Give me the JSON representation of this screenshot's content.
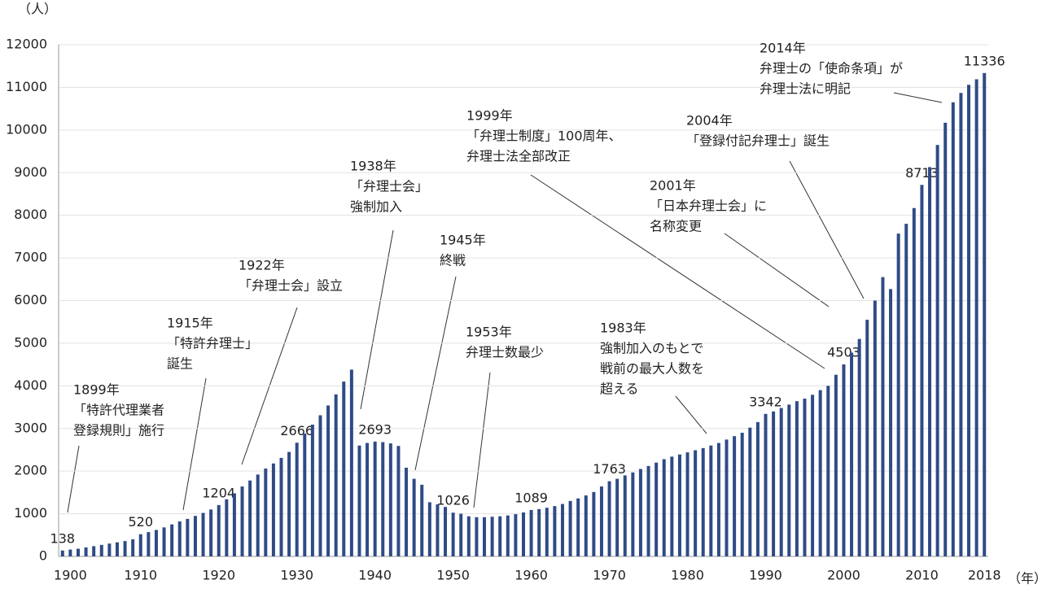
{
  "chart_data": {
    "type": "bar",
    "y_unit": "（人）",
    "x_unit": "（年）",
    "categories": [
      null,
      "1900",
      null,
      null,
      null,
      null,
      null,
      null,
      null,
      null,
      "1910",
      null,
      null,
      null,
      null,
      null,
      null,
      null,
      null,
      null,
      "1920",
      null,
      null,
      null,
      null,
      null,
      null,
      null,
      null,
      null,
      "1930",
      null,
      null,
      null,
      null,
      null,
      null,
      null,
      null,
      null,
      "1940",
      null,
      null,
      null,
      null,
      null,
      null,
      null,
      null,
      null,
      "1950",
      null,
      null,
      null,
      null,
      null,
      null,
      null,
      null,
      null,
      "1960",
      null,
      null,
      null,
      null,
      null,
      null,
      null,
      null,
      null,
      "1970",
      null,
      null,
      null,
      null,
      null,
      null,
      null,
      null,
      null,
      "1980",
      null,
      null,
      null,
      null,
      null,
      null,
      null,
      null,
      null,
      "1990",
      null,
      null,
      null,
      null,
      null,
      null,
      null,
      null,
      null,
      "2000",
      null,
      null,
      null,
      null,
      null,
      null,
      null,
      null,
      null,
      "2010",
      null,
      null,
      null,
      null,
      null,
      null,
      null,
      "2018"
    ],
    "values": [
      138,
      160,
      180,
      210,
      240,
      270,
      300,
      330,
      360,
      400,
      520,
      570,
      620,
      680,
      750,
      820,
      880,
      950,
      1020,
      1100,
      1204,
      1340,
      1480,
      1640,
      1780,
      1920,
      2060,
      2180,
      2310,
      2450,
      2666,
      2880,
      3090,
      3310,
      3540,
      3800,
      4100,
      4380,
      2600,
      2660,
      2693,
      2680,
      2650,
      2590,
      2080,
      1820,
      1680,
      1270,
      1220,
      1160,
      1026,
      1000,
      940,
      920,
      920,
      930,
      940,
      960,
      990,
      1030,
      1089,
      1110,
      1140,
      1180,
      1230,
      1300,
      1360,
      1430,
      1510,
      1640,
      1763,
      1820,
      1900,
      1970,
      2050,
      2120,
      2200,
      2280,
      2340,
      2390,
      2440,
      2490,
      2540,
      2600,
      2660,
      2740,
      2820,
      2900,
      3020,
      3150,
      3342,
      3400,
      3480,
      3560,
      3640,
      3700,
      3790,
      3900,
      4000,
      4260,
      4503,
      4780,
      5100,
      5550,
      6000,
      6550,
      6270,
      7570,
      7800,
      8170,
      8713,
      9130,
      9650,
      10170,
      10650,
      10870,
      11060,
      11190,
      11336
    ],
    "value_labels": [
      "138",
      null,
      null,
      null,
      null,
      null,
      null,
      null,
      null,
      null,
      "520",
      null,
      null,
      null,
      null,
      null,
      null,
      null,
      null,
      null,
      "1204",
      null,
      null,
      null,
      null,
      null,
      null,
      null,
      null,
      null,
      "2666",
      null,
      null,
      null,
      null,
      null,
      null,
      null,
      null,
      null,
      "2693",
      null,
      null,
      null,
      null,
      null,
      null,
      null,
      null,
      null,
      "1026",
      null,
      null,
      null,
      null,
      null,
      null,
      null,
      null,
      null,
      "1089",
      null,
      null,
      null,
      null,
      null,
      null,
      null,
      null,
      null,
      "1763",
      null,
      null,
      null,
      null,
      null,
      null,
      null,
      null,
      null,
      null,
      null,
      null,
      null,
      null,
      null,
      null,
      null,
      null,
      null,
      "3342",
      null,
      null,
      null,
      null,
      null,
      null,
      null,
      null,
      null,
      "4503",
      null,
      null,
      null,
      null,
      null,
      null,
      null,
      null,
      null,
      "8713",
      null,
      null,
      null,
      null,
      null,
      null,
      null,
      "11336"
    ],
    "color": "#2f4b86",
    "ylim": [
      0,
      12000
    ],
    "yticks": [
      0,
      1000,
      2000,
      3000,
      4000,
      5000,
      6000,
      7000,
      8000,
      9000,
      10000,
      11000,
      12000
    ],
    "grid": true,
    "annotations": [
      [
        "1899年",
        "「特許代理業者",
        "登録規則」施行"
      ],
      [
        "1915年",
        "「特許弁理士」",
        "誕生"
      ],
      [
        "1922年",
        "「弁理士会」設立"
      ],
      [
        "1938年",
        "「弁理士会」",
        "強制加入"
      ],
      [
        "1945年",
        "終戦"
      ],
      [
        "1953年",
        "弁理士数最少"
      ],
      [
        "1983年",
        "強制加入のもとで",
        "戦前の最大人数を",
        "超える"
      ],
      [
        "1999年",
        "「弁理士制度」100周年、",
        "弁理士法全部改正"
      ],
      [
        "2001年",
        "「日本弁理士会」に",
        "名称変更"
      ],
      [
        "2004年",
        "「登録付記弁理士」誕生"
      ],
      [
        "2014年",
        "弁理士の「使命条項」が",
        "弁理士法に明記"
      ]
    ]
  }
}
